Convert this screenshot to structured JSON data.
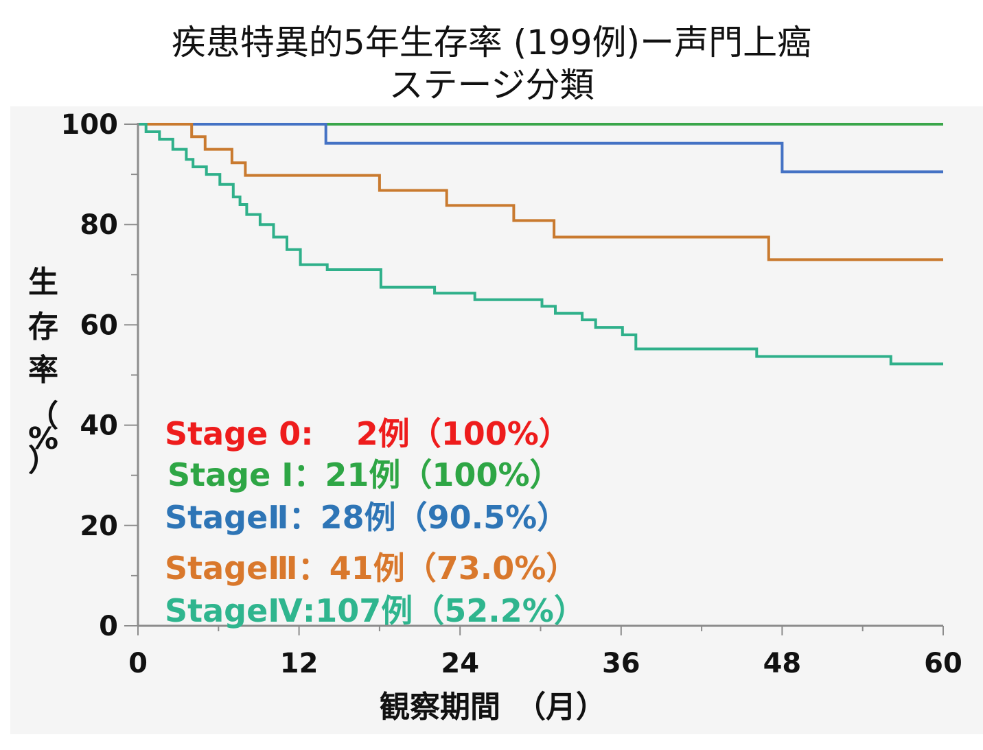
{
  "title": {
    "line1": "疾患特異的5年生存率 (199例)ー声門上癌",
    "line2": "ステージ分類"
  },
  "chart_data": {
    "type": "line",
    "step": true,
    "xlabel": "観察期間　（月）",
    "ylabel": "生存率（%）",
    "xlim": [
      0,
      60
    ],
    "ylim": [
      0,
      100
    ],
    "xticks": [
      "0",
      "12",
      "24",
      "36",
      "48",
      "60"
    ],
    "yticks": [
      "0",
      "20",
      "40",
      "60",
      "80",
      "100"
    ],
    "legend_position": "bottom-left",
    "legend": [
      {
        "text": "Stage 0:　 2例（100%）",
        "color": "#ee1c1c"
      },
      {
        "text": "Stage Ⅰ：21例（100%）",
        "color": "#2ea645"
      },
      {
        "text": "StageⅡ：28例（90.5%）",
        "color": "#2e75b6"
      },
      {
        "text": "StageⅢ：41例（73.0%）",
        "color": "#d9782c"
      },
      {
        "text": "StageⅣ:107例（52.2%）",
        "color": "#2fb58e"
      }
    ],
    "series": [
      {
        "name": "Stage Ⅰ",
        "color": "#3aa64a",
        "points": [
          [
            0,
            100
          ],
          [
            60,
            100
          ]
        ]
      },
      {
        "name": "StageⅡ",
        "color": "#4472c4",
        "points": [
          [
            0,
            100
          ],
          [
            14,
            100
          ],
          [
            14,
            96.2
          ],
          [
            48,
            96.2
          ],
          [
            48,
            90.5
          ],
          [
            60,
            90.5
          ]
        ]
      },
      {
        "name": "StageⅢ",
        "color": "#c97a2f",
        "points": [
          [
            0,
            100
          ],
          [
            4,
            100
          ],
          [
            4,
            97.5
          ],
          [
            5,
            97.5
          ],
          [
            5,
            95
          ],
          [
            7,
            95
          ],
          [
            7,
            92.3
          ],
          [
            8,
            92.3
          ],
          [
            8,
            89.8
          ],
          [
            18,
            89.8
          ],
          [
            18,
            86.8
          ],
          [
            23,
            86.8
          ],
          [
            23,
            83.8
          ],
          [
            28,
            83.8
          ],
          [
            28,
            80.8
          ],
          [
            31,
            80.8
          ],
          [
            31,
            77.5
          ],
          [
            47,
            77.5
          ],
          [
            47,
            73
          ],
          [
            60,
            73
          ]
        ]
      },
      {
        "name": "StageⅣ",
        "color": "#2fb08a",
        "points": [
          [
            0,
            100
          ],
          [
            0.6,
            100
          ],
          [
            0.6,
            98.5
          ],
          [
            1.6,
            98.5
          ],
          [
            1.6,
            97
          ],
          [
            2.6,
            97
          ],
          [
            2.6,
            95
          ],
          [
            3.6,
            95
          ],
          [
            3.6,
            93
          ],
          [
            4.1,
            93
          ],
          [
            4.1,
            91.5
          ],
          [
            5.1,
            91.5
          ],
          [
            5.1,
            90
          ],
          [
            6.1,
            90
          ],
          [
            6.1,
            88
          ],
          [
            7.1,
            88
          ],
          [
            7.1,
            85.5
          ],
          [
            7.6,
            85.5
          ],
          [
            7.6,
            84
          ],
          [
            8.1,
            84
          ],
          [
            8.1,
            82
          ],
          [
            9.1,
            82
          ],
          [
            9.1,
            80
          ],
          [
            10.1,
            80
          ],
          [
            10.1,
            77.5
          ],
          [
            11.1,
            77.5
          ],
          [
            11.1,
            75
          ],
          [
            12.1,
            75
          ],
          [
            12.1,
            72
          ],
          [
            14.1,
            72
          ],
          [
            14.1,
            71
          ],
          [
            18.1,
            71
          ],
          [
            18.1,
            67.5
          ],
          [
            22.1,
            67.5
          ],
          [
            22.1,
            66.3
          ],
          [
            25.1,
            66.3
          ],
          [
            25.1,
            65
          ],
          [
            30.1,
            65
          ],
          [
            30.1,
            63.7
          ],
          [
            31.1,
            63.7
          ],
          [
            31.1,
            62.3
          ],
          [
            33.1,
            62.3
          ],
          [
            33.1,
            61
          ],
          [
            34.1,
            61
          ],
          [
            34.1,
            59.5
          ],
          [
            36.1,
            59.5
          ],
          [
            36.1,
            58
          ],
          [
            37.1,
            58
          ],
          [
            37.1,
            55.2
          ],
          [
            46.1,
            55.2
          ],
          [
            46.1,
            53.7
          ],
          [
            56.1,
            53.7
          ],
          [
            56.1,
            52.2
          ],
          [
            60,
            52.2
          ]
        ]
      }
    ]
  }
}
